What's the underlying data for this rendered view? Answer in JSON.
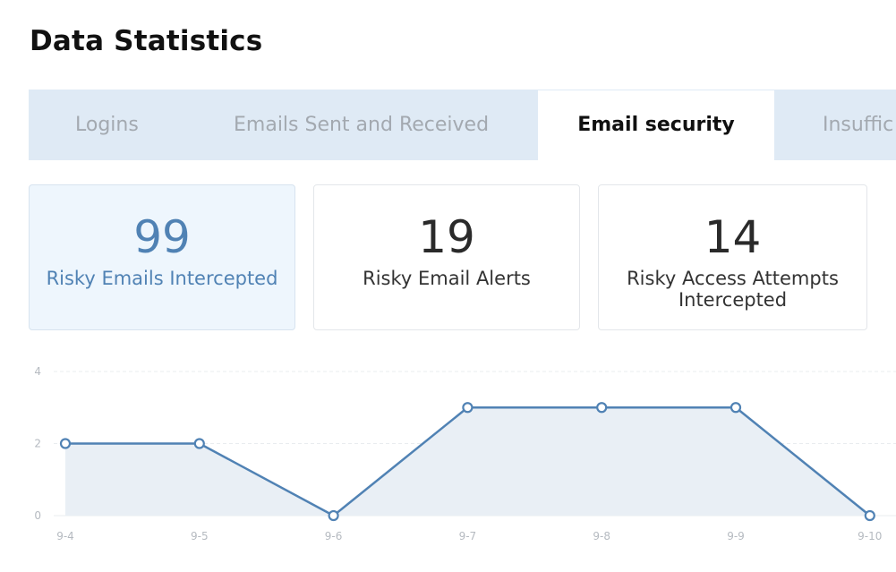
{
  "page": {
    "title": "Data Statistics"
  },
  "tabs": [
    {
      "label": "Logins"
    },
    {
      "label": "Emails Sent and Received"
    },
    {
      "label": "Email security",
      "active": true
    },
    {
      "label": "Insuffic"
    }
  ],
  "stats": [
    {
      "value": "99",
      "label": "Risky Emails Intercepted",
      "active": true
    },
    {
      "value": "19",
      "label": "Risky Email Alerts"
    },
    {
      "value": "14",
      "label": "Risky Access Attempts Intercepted"
    }
  ],
  "colors": {
    "accent": "#5082b4",
    "tab_bar": "#dfeaf5",
    "active_card_bg": "#eef6fd",
    "area_fill": "#e9eff5"
  },
  "chart_data": {
    "type": "area",
    "categories": [
      "9-4",
      "9-5",
      "9-6",
      "9-7",
      "9-8",
      "9-9",
      "9-10"
    ],
    "series": [
      {
        "values": [
          2,
          2,
          0,
          3,
          3,
          3,
          0
        ]
      }
    ],
    "ylim": [
      0,
      4
    ],
    "yticks": [
      0,
      2,
      4
    ],
    "grid": true,
    "markers": "hollow-circle"
  }
}
